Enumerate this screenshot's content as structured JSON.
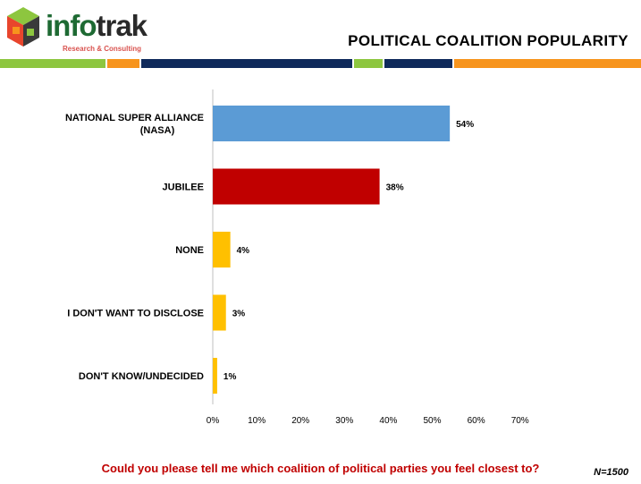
{
  "logo": {
    "brand_a": "info",
    "brand_b": "trak",
    "tagline": "Research & Consulting"
  },
  "header": {
    "title": "POLITICAL COALITION POPULARITY"
  },
  "colors": {
    "stripe_green": "#8dc63f",
    "stripe_orange": "#f7941d",
    "stripe_navy": "#0f2a5b",
    "bar_blue": "#5b9bd5",
    "bar_red": "#c00000",
    "bar_yellow": "#ffc000",
    "question_red": "#c00000"
  },
  "chart_data": {
    "type": "bar",
    "orientation": "horizontal",
    "categories": [
      "NATIONAL SUPER ALLIANCE (NASA)",
      "JUBILEE",
      "NONE",
      "I DON'T WANT TO DISCLOSE",
      "DON'T KNOW/UNDECIDED"
    ],
    "values": [
      54,
      38,
      4,
      3,
      1
    ],
    "value_labels": [
      "54%",
      "38%",
      "4%",
      "3%",
      "1%"
    ],
    "bar_colors": [
      "#5b9bd5",
      "#c00000",
      "#ffc000",
      "#ffc000",
      "#ffc000"
    ],
    "xlim": [
      0,
      70
    ],
    "ticks": [
      0,
      10,
      20,
      30,
      40,
      50,
      60,
      70
    ],
    "tick_labels": [
      "0%",
      "10%",
      "20%",
      "30%",
      "40%",
      "50%",
      "60%",
      "70%"
    ],
    "grid": false,
    "legend": "none"
  },
  "footer": {
    "question": "Could you please tell me which coalition of political parties you feel closest to?",
    "sample": "N=1500"
  }
}
